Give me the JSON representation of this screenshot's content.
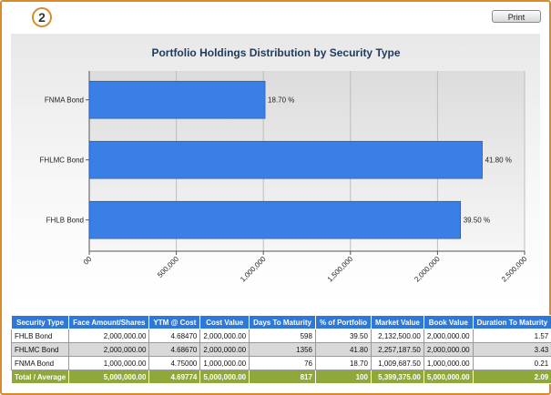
{
  "header": {
    "step_number": "2",
    "print_label": "Print"
  },
  "chart_data": {
    "type": "bar",
    "orientation": "horizontal",
    "title": "Portfolio Holdings Distribution by Security Type",
    "categories": [
      "FNMA Bond",
      "FHLMC Bond",
      "FHLB Bond"
    ],
    "values": [
      1009687.5,
      2257187.5,
      2132500.0
    ],
    "data_labels": [
      "18.70 %",
      "41.80 %",
      "39.50 %"
    ],
    "xlim": [
      0,
      2500000
    ],
    "x_ticks": [
      0,
      500000,
      1000000,
      1500000,
      2000000,
      2500000
    ],
    "x_tick_labels": [
      "00",
      "500,000",
      "1,000,000",
      "1,500,000",
      "2,000,000",
      "2,500,000"
    ],
    "grid": true,
    "bar_color": "#3a7fe6"
  },
  "table": {
    "headers": [
      "Security Type",
      "Face Amount/Shares",
      "YTM @ Cost",
      "Cost Value",
      "Days To Maturity",
      "% of Portfolio",
      "Market Value",
      "Book Value",
      "Duration To Maturity"
    ],
    "rows": [
      [
        "FHLB Bond",
        "2,000,000.00",
        "4.68470",
        "2,000,000.00",
        "598",
        "39.50",
        "2,132,500.00",
        "2,000,000.00",
        "1.57"
      ],
      [
        "FHLMC Bond",
        "2,000,000.00",
        "4.68670",
        "2,000,000.00",
        "1356",
        "41.80",
        "2,257,187.50",
        "2,000,000.00",
        "3.43"
      ],
      [
        "FNMA Bond",
        "1,000,000.00",
        "4.75000",
        "1,000,000.00",
        "76",
        "18.70",
        "1,009,687.50",
        "1,000,000.00",
        "0.21"
      ]
    ],
    "total": [
      "Total / Average",
      "5,000,000.00",
      "4.69774",
      "5,000,000.00",
      "817",
      "100",
      "5,399,375.00",
      "5,000,000.00",
      "2.09"
    ]
  }
}
